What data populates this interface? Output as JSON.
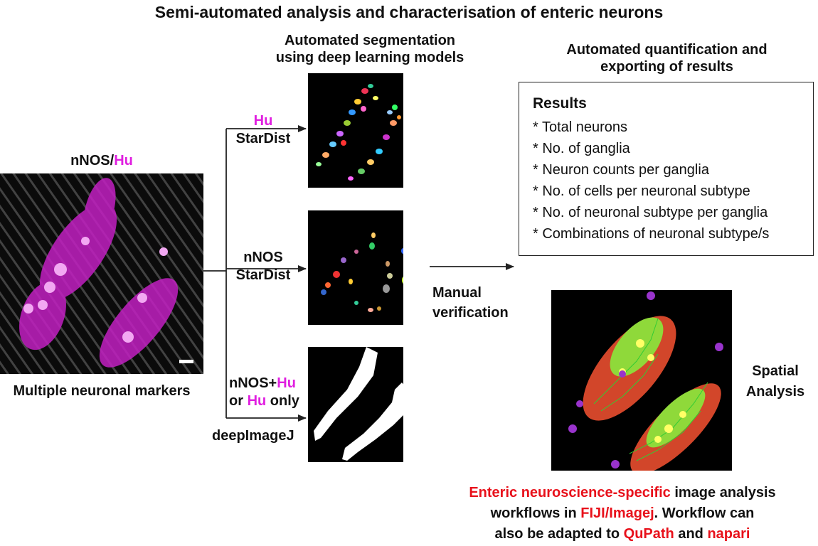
{
  "title": "Semi-automated analysis and characterisation of enteric neurons",
  "input": {
    "label_prefix": "nNOS/",
    "label_highlight": "Hu",
    "caption": "Multiple neuronal markers"
  },
  "segmentation": {
    "header_line1": "Automated segmentation",
    "header_line2": "using deep learning models",
    "branch1": {
      "marker": "Hu",
      "tool": "StarDist"
    },
    "branch2": {
      "marker": "nNOS",
      "tool": "StarDist"
    },
    "branch3": {
      "marker_a": "nNOS+",
      "marker_b": "Hu",
      "or_text": "or",
      "marker_c": "Hu",
      "only_text": "only",
      "tool": "deepImageJ"
    }
  },
  "verification": {
    "line1": "Manual",
    "line2": "verification"
  },
  "quantification": {
    "header_line1": "Automated quantification and",
    "header_line2": "exporting of results",
    "results_title": "Results",
    "results_items": [
      "* Total neurons",
      "* No. of ganglia",
      "* Neuron counts per ganglia",
      "* No. of cells per neuronal subtype",
      "* No. of neuronal subtype per ganglia",
      "* Combinations of neuronal subtype/s"
    ]
  },
  "spatial": {
    "line1": "Spatial",
    "line2": "Analysis"
  },
  "footer": {
    "part1_red": "Enteric neuroscience-specific",
    "part1_black": " image analysis",
    "part2_black": "workflows in ",
    "part2_red": "FIJI/Imagej",
    "part2_black_end": ". Workflow can",
    "part3_black": "also be adapted to ",
    "part3_red1": "QuPath",
    "part3_black_mid": " and ",
    "part3_red2": "napari"
  },
  "colors": {
    "highlight_magenta": "#e01fe0",
    "highlight_red": "#e8111b",
    "panel_bg": "#000000"
  }
}
